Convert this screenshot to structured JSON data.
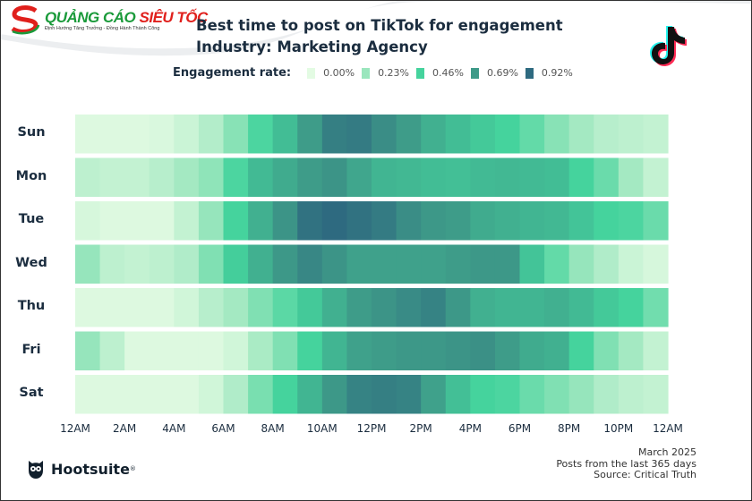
{
  "brand": {
    "name_part1": "QUẢNG CÁO",
    "name_part2": "SIÊU TỐC",
    "tagline": "Định Hướng Tăng Trưởng - Đồng Hành Thành Công"
  },
  "footer": {
    "logo": "Hootsuite",
    "date": "March 2025",
    "period": "Posts from the last 365 days",
    "source": "Source: Critical Truth"
  },
  "icons": [
    "tiktok-logo-icon",
    "hootsuite-owl-icon",
    "brand-s-logo-icon"
  ],
  "chart_data": {
    "type": "heatmap",
    "title": "Best time to post on TikTok for engagement",
    "subtitle": "Industry: Marketing Agency",
    "legend": {
      "label": "Engagement rate:",
      "placement": "top",
      "entries": [
        {
          "value": 0.0,
          "text": "0.00%",
          "color": "#e3fbe3"
        },
        {
          "value": 0.23,
          "text": "0.23%",
          "color": "#9ae6bd"
        },
        {
          "value": 0.46,
          "text": "0.46%",
          "color": "#45d39d"
        },
        {
          "value": 0.69,
          "text": "0.69%",
          "color": "#3e9a88"
        },
        {
          "value": 0.92,
          "text": "0.92%",
          "color": "#2e6a80"
        }
      ]
    },
    "x_tick_labels": [
      "12AM",
      "2AM",
      "4AM",
      "6AM",
      "8AM",
      "10AM",
      "12PM",
      "2PM",
      "4PM",
      "6PM",
      "8PM",
      "10PM",
      "12AM"
    ],
    "rows": [
      "Sun",
      "Mon",
      "Tue",
      "Wed",
      "Thu",
      "Fri",
      "Sat"
    ],
    "unit": "%",
    "values": [
      [
        0.02,
        0.02,
        0.02,
        0.03,
        0.08,
        0.15,
        0.28,
        0.44,
        0.55,
        0.68,
        0.82,
        0.84,
        0.75,
        0.68,
        0.6,
        0.55,
        0.5,
        0.46,
        0.38,
        0.28,
        0.2,
        0.14,
        0.12,
        0.1
      ],
      [
        0.12,
        0.1,
        0.1,
        0.14,
        0.2,
        0.26,
        0.44,
        0.56,
        0.62,
        0.68,
        0.72,
        0.64,
        0.58,
        0.57,
        0.55,
        0.54,
        0.56,
        0.57,
        0.56,
        0.55,
        0.46,
        0.36,
        0.2,
        0.1
      ],
      [
        0.04,
        0.02,
        0.02,
        0.02,
        0.1,
        0.24,
        0.46,
        0.6,
        0.72,
        0.88,
        0.92,
        0.88,
        0.84,
        0.75,
        0.7,
        0.68,
        0.62,
        0.6,
        0.58,
        0.57,
        0.52,
        0.46,
        0.44,
        0.36
      ],
      [
        0.24,
        0.12,
        0.1,
        0.12,
        0.16,
        0.3,
        0.48,
        0.6,
        0.7,
        0.78,
        0.72,
        0.66,
        0.66,
        0.66,
        0.66,
        0.68,
        0.7,
        0.7,
        0.52,
        0.38,
        0.24,
        0.16,
        0.08,
        0.04
      ],
      [
        0.02,
        0.02,
        0.02,
        0.02,
        0.06,
        0.14,
        0.2,
        0.3,
        0.4,
        0.5,
        0.6,
        0.68,
        0.72,
        0.76,
        0.8,
        0.7,
        0.6,
        0.58,
        0.58,
        0.6,
        0.56,
        0.5,
        0.46,
        0.34
      ],
      [
        0.24,
        0.12,
        0.02,
        0.02,
        0.02,
        0.02,
        0.06,
        0.18,
        0.3,
        0.46,
        0.58,
        0.66,
        0.68,
        0.7,
        0.7,
        0.72,
        0.74,
        0.68,
        0.62,
        0.6,
        0.46,
        0.3,
        0.2,
        0.1
      ],
      [
        0.02,
        0.02,
        0.02,
        0.02,
        0.02,
        0.06,
        0.16,
        0.32,
        0.46,
        0.58,
        0.7,
        0.8,
        0.82,
        0.8,
        0.66,
        0.54,
        0.46,
        0.44,
        0.36,
        0.3,
        0.24,
        0.16,
        0.12,
        0.1
      ]
    ]
  }
}
